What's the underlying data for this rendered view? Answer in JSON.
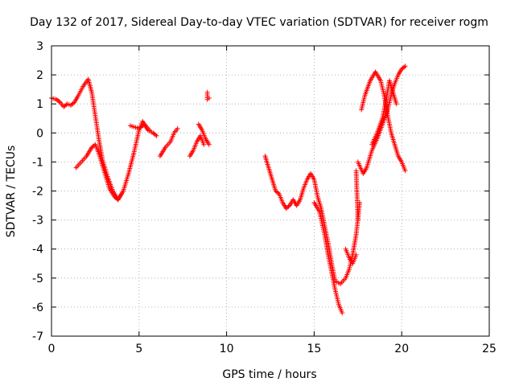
{
  "chart_data": {
    "type": "scatter",
    "title": "Day 132 of 2017, Sidereal Day-to-day VTEC variation (SDTVAR) for receiver rogm",
    "xlabel": "GPS time / hours",
    "ylabel": "SDTVAR / TECUs",
    "xlim": [
      0,
      25
    ],
    "ylim": [
      -7,
      3
    ],
    "xticks": [
      0,
      5,
      10,
      15,
      20,
      25
    ],
    "yticks": [
      -7,
      -6,
      -5,
      -4,
      -3,
      -2,
      -1,
      0,
      1,
      2,
      3
    ],
    "grid": true,
    "marker": "+",
    "color": "#ff0000",
    "series": [
      {
        "curves": [
          [
            [
              0.0,
              1.2
            ],
            [
              0.3,
              1.15
            ],
            [
              0.5,
              1.05
            ],
            [
              0.7,
              0.9
            ],
            [
              0.9,
              1.0
            ],
            [
              1.1,
              0.95
            ],
            [
              1.3,
              1.05
            ],
            [
              1.5,
              1.25
            ],
            [
              1.8,
              1.6
            ],
            [
              2.1,
              1.85
            ],
            [
              2.3,
              1.4
            ],
            [
              2.5,
              0.6
            ],
            [
              2.7,
              -0.2
            ],
            [
              2.9,
              -0.9
            ],
            [
              3.2,
              -1.5
            ],
            [
              3.5,
              -2.0
            ],
            [
              3.8,
              -2.3
            ],
            [
              4.1,
              -2.0
            ],
            [
              4.4,
              -1.4
            ],
            [
              4.7,
              -0.7
            ],
            [
              5.0,
              0.1
            ],
            [
              5.2,
              0.4
            ],
            [
              5.5,
              0.1
            ],
            [
              5.8,
              0.0
            ],
            [
              6.0,
              -0.1
            ]
          ],
          [
            [
              1.4,
              -1.2
            ],
            [
              1.7,
              -1.0
            ],
            [
              2.0,
              -0.8
            ],
            [
              2.3,
              -0.5
            ],
            [
              2.5,
              -0.4
            ],
            [
              2.7,
              -0.7
            ],
            [
              3.0,
              -1.3
            ],
            [
              3.3,
              -1.9
            ],
            [
              3.6,
              -2.2
            ],
            [
              3.8,
              -2.3
            ],
            [
              4.0,
              -2.1
            ]
          ],
          [
            [
              4.5,
              0.25
            ],
            [
              5.0,
              0.15
            ],
            [
              5.3,
              0.3
            ],
            [
              5.6,
              0.1
            ]
          ],
          [
            [
              6.2,
              -0.8
            ],
            [
              6.5,
              -0.5
            ],
            [
              6.8,
              -0.3
            ],
            [
              7.0,
              0.0
            ],
            [
              7.2,
              0.15
            ]
          ],
          [
            [
              7.9,
              -0.8
            ],
            [
              8.1,
              -0.6
            ],
            [
              8.3,
              -0.3
            ],
            [
              8.5,
              -0.1
            ],
            [
              8.7,
              -0.4
            ]
          ],
          [
            [
              8.4,
              0.3
            ],
            [
              8.6,
              0.1
            ],
            [
              8.8,
              -0.2
            ],
            [
              9.0,
              -0.4
            ]
          ],
          [
            [
              8.9,
              1.4
            ],
            [
              8.9,
              1.15
            ],
            [
              9.0,
              1.2
            ]
          ],
          [
            [
              12.2,
              -0.8
            ],
            [
              12.4,
              -1.2
            ],
            [
              12.6,
              -1.6
            ],
            [
              12.8,
              -2.0
            ],
            [
              13.0,
              -2.1
            ],
            [
              13.2,
              -2.4
            ],
            [
              13.4,
              -2.6
            ],
            [
              13.6,
              -2.5
            ],
            [
              13.8,
              -2.3
            ],
            [
              14.0,
              -2.5
            ],
            [
              14.2,
              -2.3
            ],
            [
              14.4,
              -1.9
            ],
            [
              14.6,
              -1.6
            ],
            [
              14.8,
              -1.4
            ],
            [
              15.0,
              -1.6
            ],
            [
              15.2,
              -2.2
            ],
            [
              15.4,
              -2.6
            ],
            [
              15.6,
              -3.2
            ],
            [
              15.8,
              -3.8
            ],
            [
              16.0,
              -4.5
            ],
            [
              16.2,
              -5.1
            ],
            [
              16.5,
              -5.2
            ],
            [
              16.8,
              -5.0
            ],
            [
              17.0,
              -4.7
            ],
            [
              17.2,
              -4.2
            ],
            [
              17.4,
              -3.5
            ],
            [
              17.6,
              -2.4
            ]
          ],
          [
            [
              15.0,
              -2.4
            ],
            [
              15.3,
              -2.7
            ],
            [
              15.6,
              -3.5
            ],
            [
              15.8,
              -4.2
            ],
            [
              16.0,
              -4.8
            ],
            [
              16.2,
              -5.4
            ],
            [
              16.4,
              -5.9
            ],
            [
              16.6,
              -6.2
            ]
          ],
          [
            [
              16.8,
              -4.0
            ],
            [
              17.0,
              -4.3
            ],
            [
              17.2,
              -4.5
            ],
            [
              17.4,
              -4.2
            ]
          ],
          [
            [
              17.5,
              -3.0
            ],
            [
              17.4,
              -1.3
            ]
          ],
          [
            [
              17.5,
              -1.0
            ],
            [
              17.8,
              -1.4
            ],
            [
              18.0,
              -1.2
            ],
            [
              18.3,
              -0.6
            ],
            [
              18.6,
              -0.2
            ],
            [
              18.9,
              0.3
            ],
            [
              19.2,
              0.8
            ],
            [
              19.4,
              1.3
            ],
            [
              19.6,
              1.7
            ],
            [
              19.8,
              2.0
            ],
            [
              20.0,
              2.2
            ],
            [
              20.2,
              2.3
            ]
          ],
          [
            [
              17.7,
              0.8
            ],
            [
              17.9,
              1.3
            ],
            [
              18.2,
              1.8
            ],
            [
              18.5,
              2.1
            ],
            [
              18.8,
              1.8
            ],
            [
              19.0,
              1.3
            ],
            [
              19.2,
              0.6
            ],
            [
              19.4,
              0.0
            ],
            [
              19.6,
              -0.4
            ],
            [
              19.8,
              -0.8
            ],
            [
              20.0,
              -1.0
            ],
            [
              20.2,
              -1.3
            ]
          ],
          [
            [
              18.3,
              -0.4
            ],
            [
              18.6,
              0.0
            ],
            [
              18.9,
              0.5
            ],
            [
              19.1,
              1.1
            ],
            [
              19.3,
              1.8
            ],
            [
              19.5,
              1.4
            ],
            [
              19.7,
              1.0
            ]
          ]
        ]
      }
    ]
  }
}
